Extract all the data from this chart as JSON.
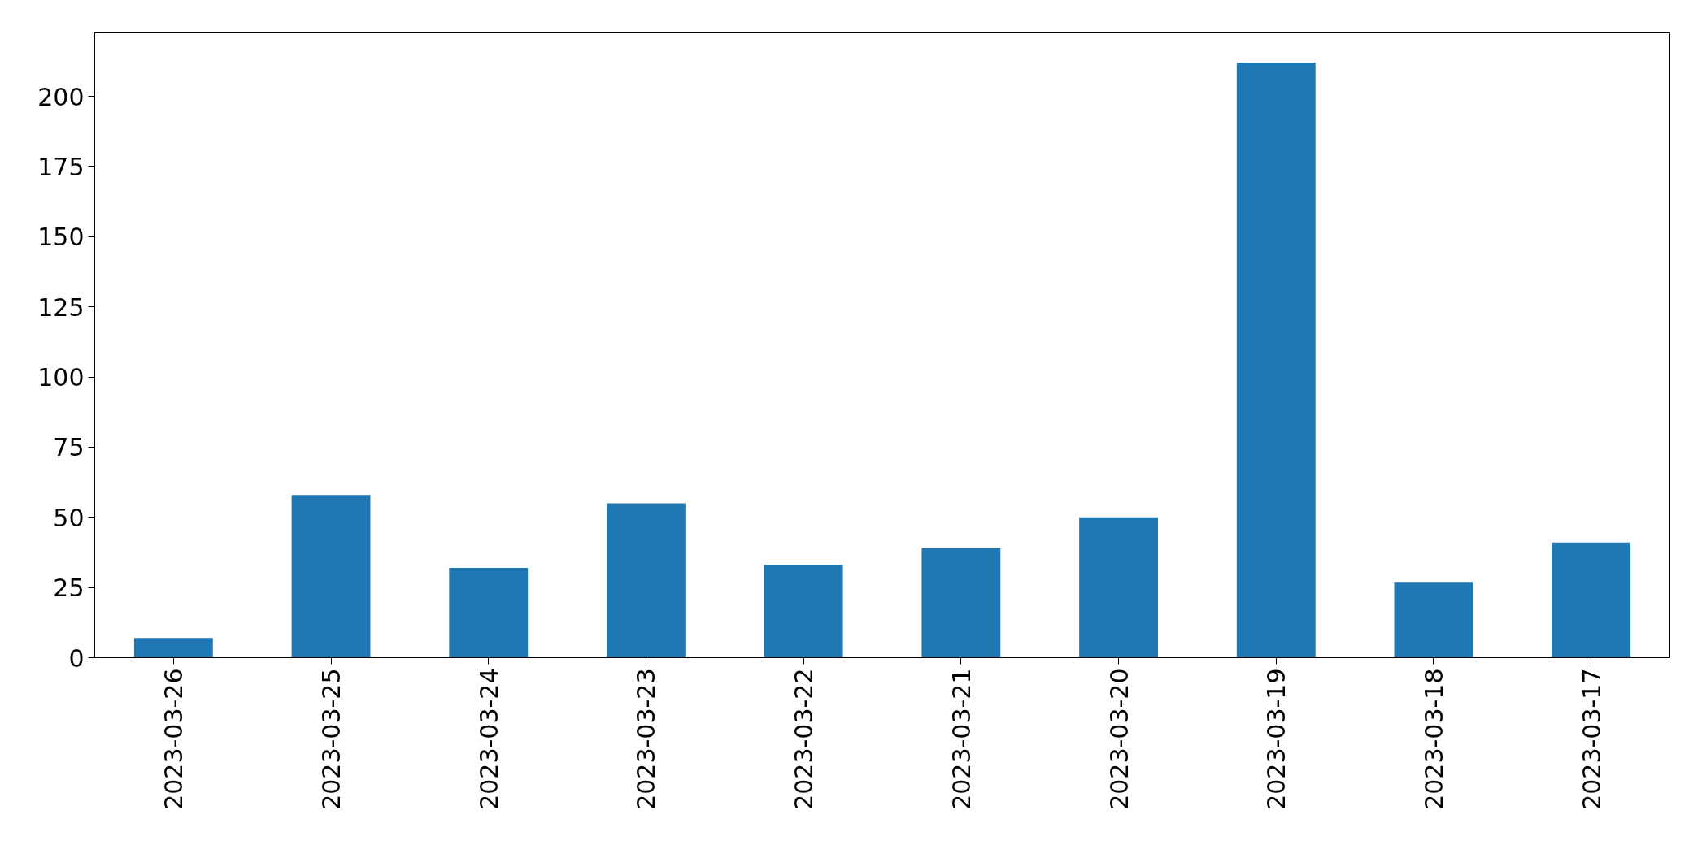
{
  "chart_data": {
    "type": "bar",
    "categories": [
      "2023-03-26",
      "2023-03-25",
      "2023-03-24",
      "2023-03-23",
      "2023-03-22",
      "2023-03-21",
      "2023-03-20",
      "2023-03-19",
      "2023-03-18",
      "2023-03-17"
    ],
    "values": [
      7,
      58,
      32,
      55,
      33,
      39,
      50,
      212,
      27,
      41
    ],
    "color": "#1f77b4",
    "ylim": [
      0,
      222.6
    ],
    "yticks": [
      0,
      25,
      50,
      75,
      100,
      125,
      150,
      175,
      200
    ],
    "grid": false
  }
}
